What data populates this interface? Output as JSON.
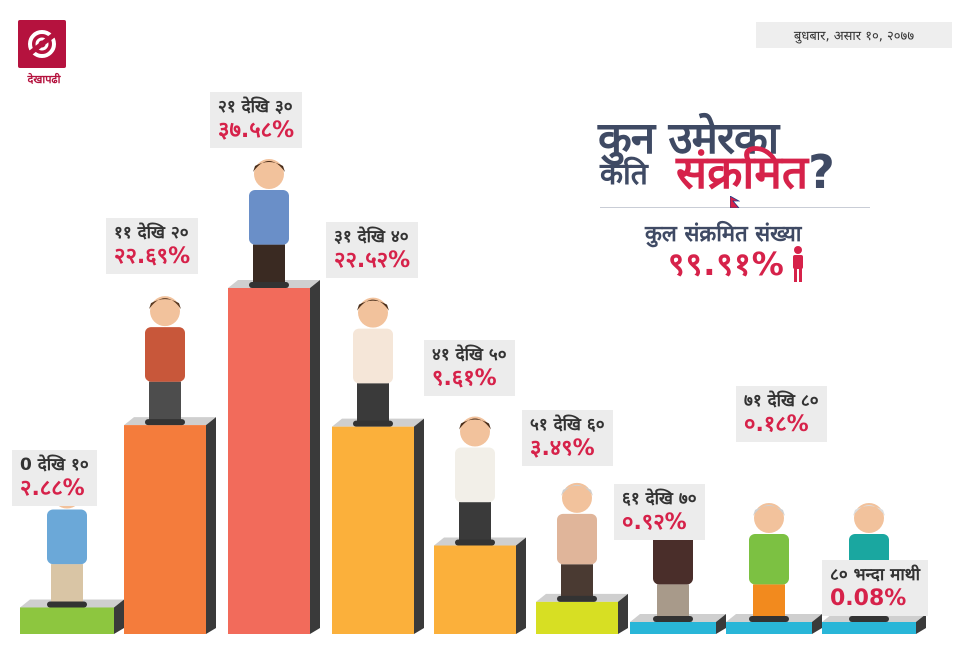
{
  "logo": {
    "text": "देखापढी"
  },
  "date": "बुधबार, असार १०, २०७७",
  "title": {
    "line1": "कुन उमेरका",
    "line2_prefix": "कति",
    "line2_highlight": "संक्रमित",
    "qmark": "?"
  },
  "total": {
    "label": "कुल संक्रमित संख्या",
    "value": "९९.९१%"
  },
  "colors": {
    "accent": "#d6224a",
    "title": "#3f4a64"
  },
  "chart_data": {
    "type": "bar",
    "categories": [
      "0 देखि १०",
      "११ देखि २०",
      "२१ देखि ३०",
      "३१ देखि ४०",
      "४१ देखि ५०",
      "५१ देखि ६०",
      "६१ देखि ७०",
      "७१ देखि ८०",
      "८० भन्दा माथी"
    ],
    "values": [
      2.88,
      22.69,
      37.58,
      22.52,
      9.61,
      3.49,
      0.92,
      0.18,
      0.08
    ],
    "value_labels": [
      "२.८८%",
      "२२.६९%",
      "३७.५८%",
      "२२.५२%",
      "९.६१%",
      "३.४९%",
      "०.९२%",
      "०.१८%",
      "0.08%"
    ],
    "bar_colors": [
      "#8dc63f",
      "#f47c3c",
      "#f26b5b",
      "#fbb03b",
      "#fbb03b",
      "#d7df23",
      "#29b6d8",
      "#29b6d8",
      "#29b6d8"
    ]
  }
}
